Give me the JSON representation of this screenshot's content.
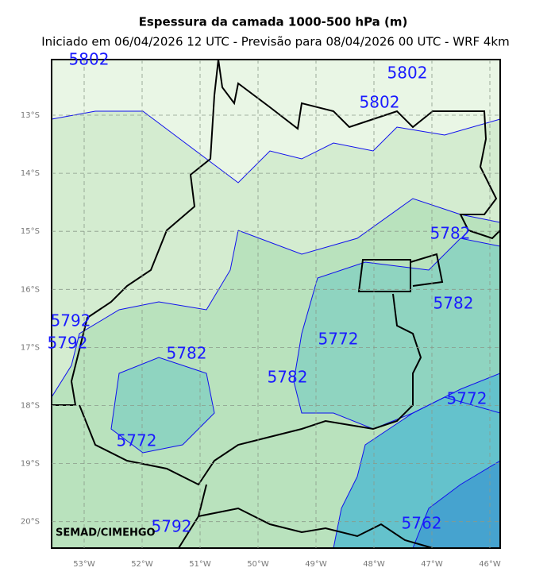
{
  "title": "Espessura da camada 1000-500 hPa (m)",
  "subtitle": "Iniciado em 06/04/2026 12 UTC - Previsão para 08/04/2026 00 UTC - WRF 4km",
  "map": {
    "lat_labels": [
      "13°S",
      "14°S",
      "15°S",
      "16°S",
      "17°S",
      "18°S",
      "19°S",
      "20°S"
    ],
    "lon_labels": [
      "53°W",
      "52°W",
      "51°W",
      "50°W",
      "49°W",
      "48°W",
      "47°W",
      "46°W"
    ],
    "contour_labels": [
      "5802",
      "5802",
      "5802",
      "5782",
      "5782",
      "5792",
      "5792",
      "5772",
      "5782",
      "5782",
      "5772",
      "5772",
      "5792",
      "5762"
    ],
    "credit": "SEMAD/CIMEHGO"
  }
}
